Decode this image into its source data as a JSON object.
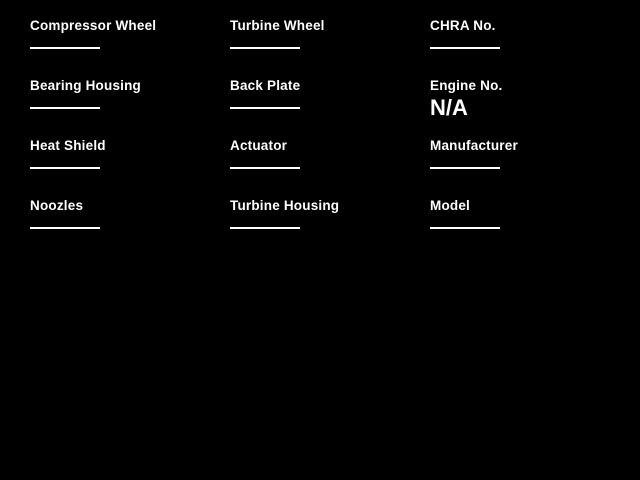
{
  "theme": {
    "background_color": "#000000",
    "text_color": "#ffffff",
    "field_line_color": "#ffffff"
  },
  "form": {
    "columns": [
      {
        "fields": [
          {
            "label": "Compressor Wheel",
            "value": ""
          },
          {
            "label": "Bearing Housing",
            "value": ""
          },
          {
            "label": "Heat Shield",
            "value": ""
          },
          {
            "label": "Noozles",
            "value": ""
          }
        ]
      },
      {
        "fields": [
          {
            "label": "Turbine Wheel",
            "value": ""
          },
          {
            "label": "Back Plate",
            "value": ""
          },
          {
            "label": "Actuator",
            "value": ""
          },
          {
            "label": "Turbine Housing",
            "value": ""
          }
        ]
      },
      {
        "fields": [
          {
            "label": "CHRA No.",
            "value": ""
          },
          {
            "label": "Engine No.",
            "value": "N/A"
          },
          {
            "label": "Manufacturer",
            "value": ""
          },
          {
            "label": "Model",
            "value": ""
          }
        ]
      }
    ]
  }
}
